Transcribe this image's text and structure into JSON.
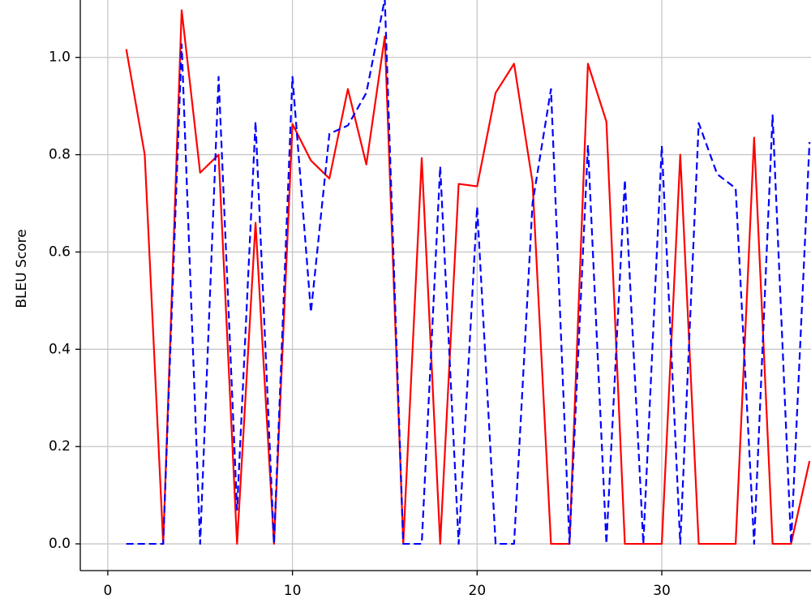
{
  "chart_data": {
    "type": "line",
    "y_label": "BLEU Score",
    "x": [
      1,
      2,
      3,
      4,
      5,
      6,
      7,
      8,
      9,
      10,
      11,
      12,
      13,
      14,
      15,
      16,
      17,
      18,
      19,
      20,
      21,
      22,
      23,
      24,
      25,
      26,
      27,
      28,
      29,
      30,
      31,
      32,
      33,
      34,
      35,
      36,
      37,
      38
    ],
    "series": [
      {
        "color": "#ff0000",
        "style": "solid",
        "values": [
          1.017,
          0.8,
          0,
          1.097,
          0.763,
          0.8,
          0,
          0.66,
          0,
          0.863,
          0.788,
          0.751,
          0.935,
          0.78,
          1.043,
          0,
          0.793,
          0,
          0.74,
          0.735,
          0.927,
          0.987,
          0.743,
          0,
          0,
          0.987,
          0.868,
          0,
          0,
          0,
          0.8,
          0,
          0,
          0,
          0.835,
          0,
          0,
          0.17
        ]
      },
      {
        "color": "#0000ff",
        "style": "dashed",
        "values": [
          0,
          0,
          0,
          1.027,
          0,
          0.96,
          0.07,
          0.868,
          0,
          0.96,
          0.476,
          0.843,
          0.86,
          0.927,
          1.12,
          0,
          0,
          0.776,
          0,
          0.693,
          0,
          0,
          0.7,
          0.935,
          0,
          0.82,
          0,
          0.748,
          0,
          0.818,
          0,
          0.865,
          0.76,
          0.731,
          0,
          0.881,
          0,
          0.826
        ]
      }
    ],
    "xlim": [
      -1.49,
      38.08
    ],
    "ylim": [
      -0.055,
      1.118
    ],
    "xticks": [
      0,
      10,
      20,
      30
    ],
    "yticks": [
      {
        "value": 0,
        "label": "0.0"
      },
      {
        "value": 0.2,
        "label": "0.2"
      },
      {
        "value": 0.4,
        "label": "0.4"
      },
      {
        "value": 0.6,
        "label": "0.6"
      },
      {
        "value": 0.8,
        "label": "0.8"
      },
      {
        "value": 1.0,
        "label": "1.0"
      }
    ],
    "grid": true
  }
}
